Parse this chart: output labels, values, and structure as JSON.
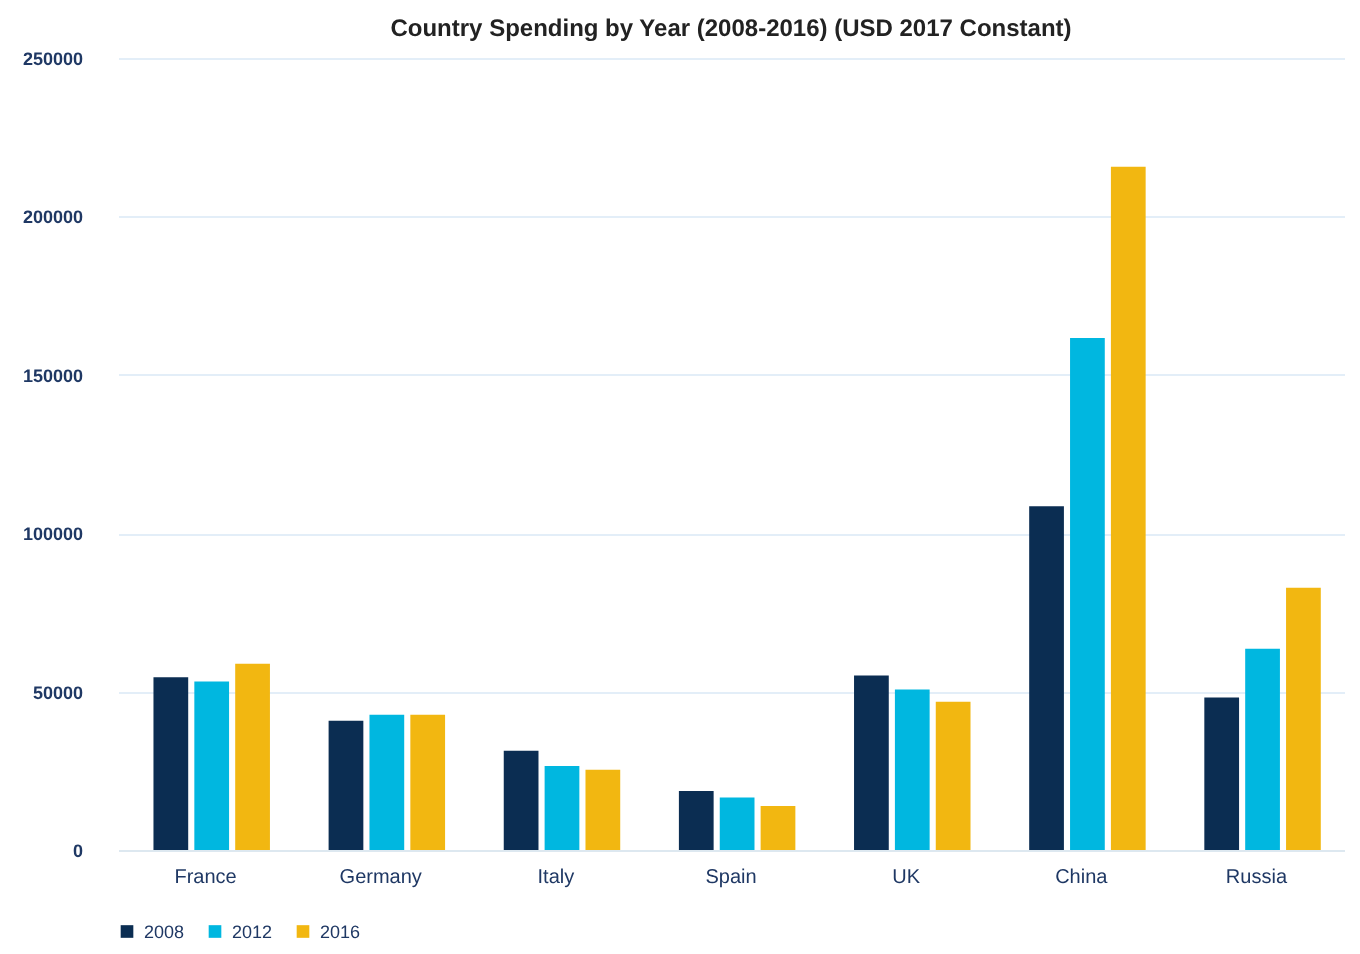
{
  "chart_data": {
    "type": "bar",
    "title": "Country Spending by Year (2008-2016) (USD 2017 Constant)",
    "categories": [
      "France",
      "Germany",
      "Italy",
      "Spain",
      "UK",
      "China",
      "Russia"
    ],
    "series": [
      {
        "name": "2008",
        "color": "#0b2d52",
        "values": [
          54500,
          40800,
          31300,
          18600,
          55100,
          108500,
          48100
        ]
      },
      {
        "name": "2012",
        "color": "#00b7e0",
        "values": [
          53200,
          42700,
          26500,
          16600,
          50700,
          161600,
          63500
        ]
      },
      {
        "name": "2016",
        "color": "#f2b711",
        "values": [
          58800,
          42700,
          25300,
          13900,
          46800,
          215700,
          82800
        ]
      }
    ],
    "ylim": [
      0,
      250000
    ],
    "yticks": [
      0,
      50000,
      100000,
      150000,
      200000,
      250000
    ],
    "grid": "y",
    "legend": "bottom"
  }
}
